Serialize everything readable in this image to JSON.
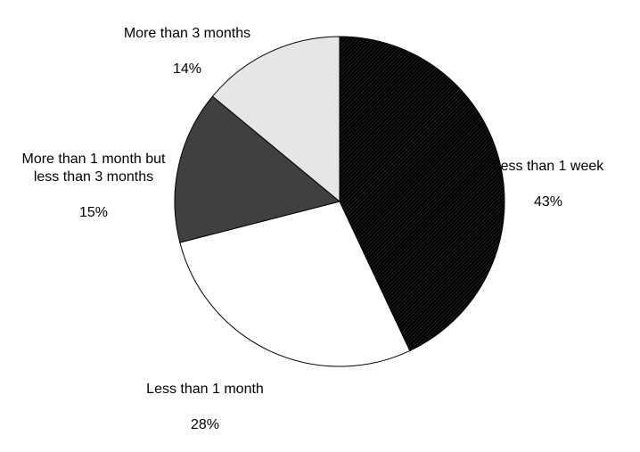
{
  "chart_data": {
    "type": "pie",
    "title": "",
    "slices": [
      {
        "label": "Less than 1 week",
        "value": 43,
        "value_label": "43%",
        "fill": "#111111",
        "pattern": "diag-dark"
      },
      {
        "label": "Less than 1 month",
        "value": 28,
        "value_label": "28%",
        "fill": "#ffffff",
        "pattern": "none"
      },
      {
        "label": "More than 1 month but\nless than 3 months",
        "value": 15,
        "value_label": "15%",
        "fill": "#404040",
        "pattern": "none"
      },
      {
        "label": "More than 3 months",
        "value": 14,
        "value_label": "14%",
        "fill": "#e6e6e6",
        "pattern": "none"
      }
    ],
    "start_direction": "top",
    "direction": "clockwise",
    "legend": "none"
  }
}
